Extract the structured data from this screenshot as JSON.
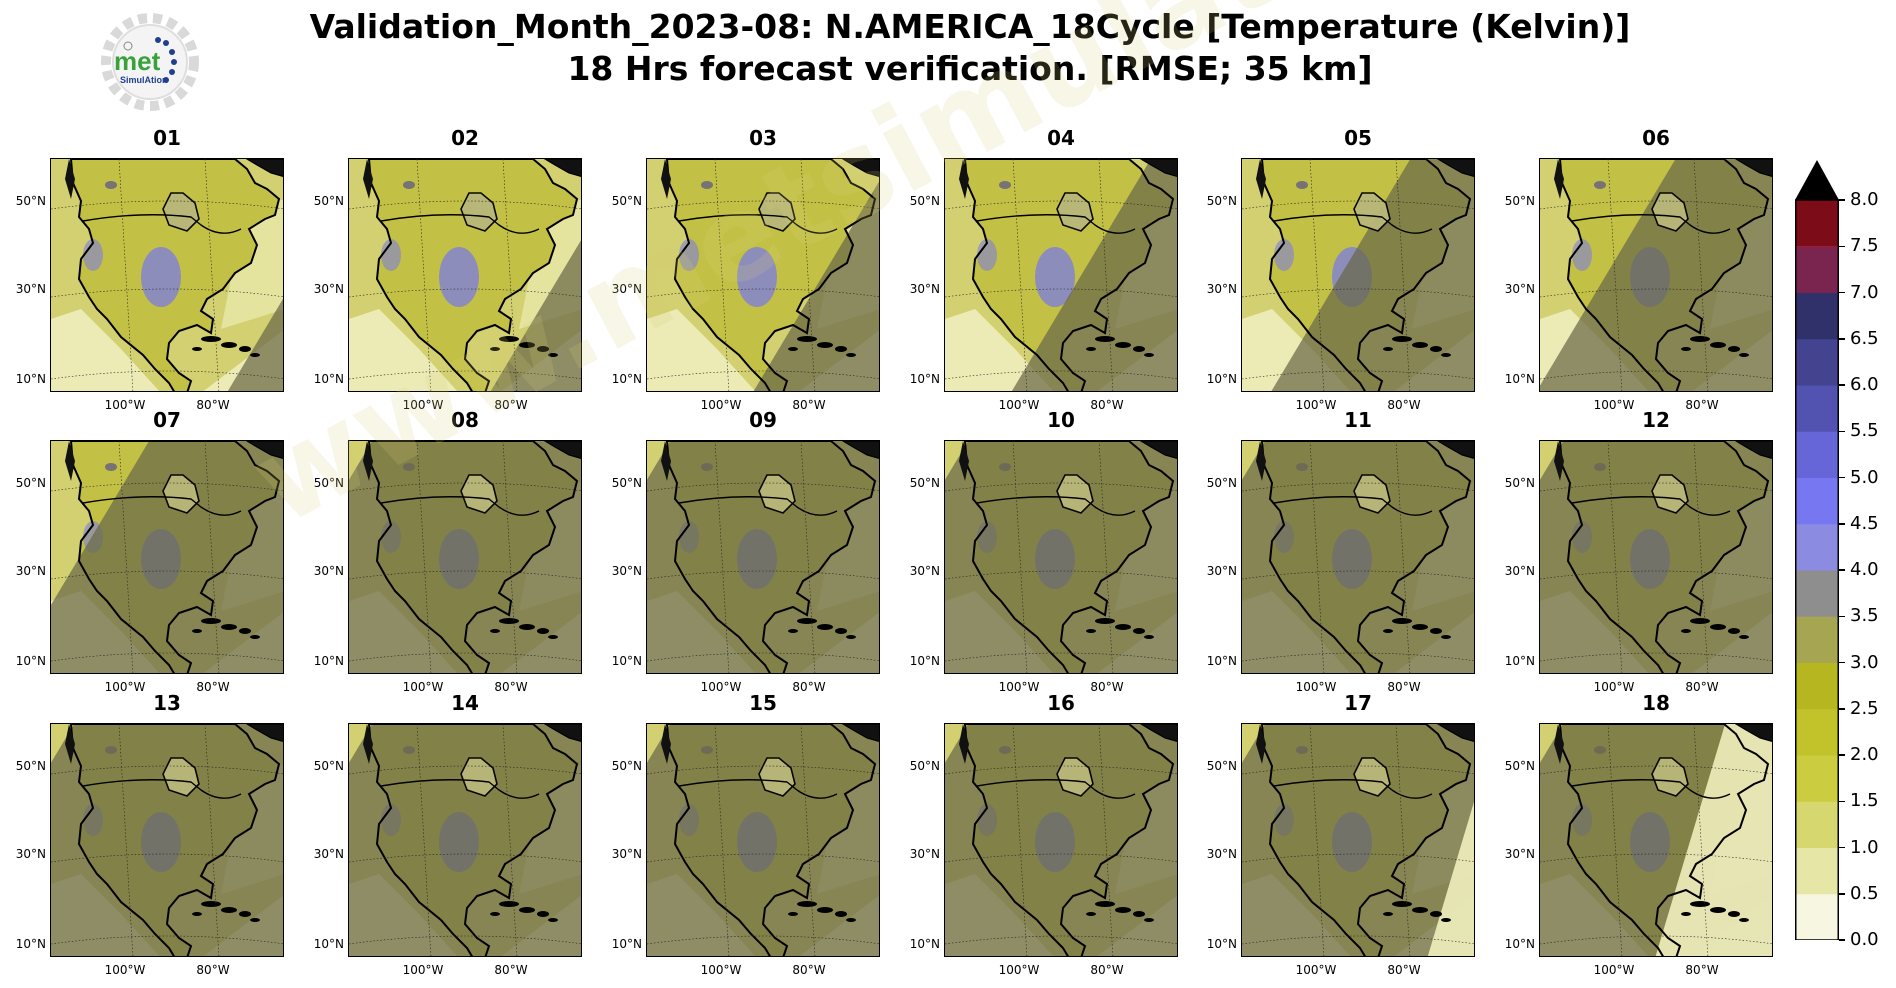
{
  "header": {
    "title_line1": "Validation_Month_2023-08: N.AMERICA_18Cycle [Temperature (Kelvin)]",
    "title_line2": "18 Hrs forecast verification.  [RMSE; 35 km]"
  },
  "logo": {
    "text_main": "met",
    "text_sub": "SimulAtion"
  },
  "watermark": "www.metsimulation.com",
  "axes": {
    "lat_labels": [
      "50°N",
      "30°N",
      "10°N"
    ],
    "lon_labels": [
      "100°W",
      "80°W"
    ]
  },
  "panels": [
    {
      "title": "01",
      "front": 1.05
    },
    {
      "title": "02",
      "front": 0.9
    },
    {
      "title": "03",
      "front": 0.75
    },
    {
      "title": "04",
      "front": 0.58
    },
    {
      "title": "05",
      "front": 0.42
    },
    {
      "title": "06",
      "front": 0.28
    },
    {
      "title": "07",
      "front": 0.12
    },
    {
      "title": "08",
      "front": -0.2
    },
    {
      "title": "09",
      "front": -0.2
    },
    {
      "title": "10",
      "front": -0.2
    },
    {
      "title": "11",
      "front": -0.2
    },
    {
      "title": "12",
      "front": -0.2
    },
    {
      "title": "13",
      "front": -0.2
    },
    {
      "title": "14",
      "front": -0.2
    },
    {
      "title": "15",
      "front": -0.2
    },
    {
      "title": "16",
      "front": -0.2
    },
    {
      "title": "17",
      "front": -0.2,
      "east_light": 0.92
    },
    {
      "title": "18",
      "front": -0.2,
      "east_light": 0.62
    }
  ],
  "colorbar": {
    "ticks": [
      "0.0",
      "0.5",
      "1.0",
      "1.5",
      "2.0",
      "2.5",
      "3.0",
      "3.5",
      "4.0",
      "4.5",
      "5.0",
      "5.5",
      "6.0",
      "6.5",
      "7.0",
      "7.5",
      "8.0"
    ],
    "colors": [
      "#f7f7e1",
      "#e6e6a6",
      "#d7d770",
      "#cccc40",
      "#c2c22a",
      "#b6b620",
      "#a5a552",
      "#8e8e8e",
      "#8b8be2",
      "#7777f2",
      "#6666d8",
      "#5252b0",
      "#434390",
      "#30306a",
      "#7a2450",
      "#d51a33",
      "#7c0c17"
    ],
    "extend_color": "#000000",
    "vmin": 0.0,
    "vmax": 8.0
  }
}
